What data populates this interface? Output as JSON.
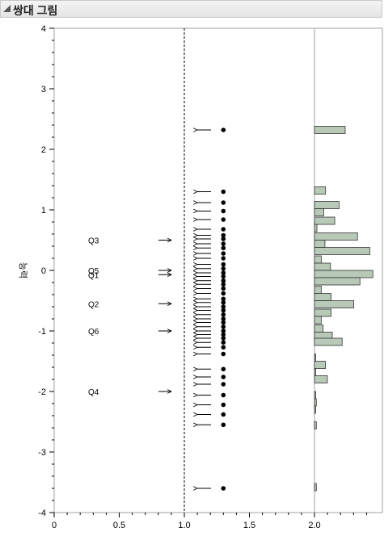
{
  "header": {
    "title": "쌍대 그림"
  },
  "chart_data": {
    "type": "scatter",
    "title": "",
    "xlabel": "",
    "ylabel": "능력",
    "xlim": [
      0,
      2.5
    ],
    "ylim": [
      -4,
      4
    ],
    "x_ticks": [
      0,
      0.5,
      1,
      1.5,
      2
    ],
    "x_tick_labels": [
      "0",
      "0.5",
      "1.0",
      "1.5",
      "2.0"
    ],
    "y_ticks": [
      -4,
      -3,
      -2,
      -1,
      0,
      1,
      2,
      3,
      4
    ],
    "y_tick_labels": [
      "-4",
      "-3",
      "-2",
      "-1",
      "0",
      "1",
      "2",
      "3",
      "4"
    ],
    "reference_line_x": 1.0,
    "histogram_baseline_x": 2.0,
    "points_x": 1.3,
    "point_y": [
      2.32,
      1.3,
      1.12,
      0.98,
      0.84,
      0.68,
      0.58,
      0.52,
      0.44,
      0.37,
      0.28,
      0.2,
      0.1,
      0.03,
      -0.04,
      -0.1,
      -0.17,
      -0.23,
      -0.3,
      -0.38,
      -0.47,
      -0.53,
      -0.6,
      -0.66,
      -0.73,
      -0.8,
      -0.86,
      -0.93,
      -1.0,
      -1.06,
      -1.12,
      -1.19,
      -1.27,
      -1.38,
      -1.63,
      -1.76,
      -1.88,
      -2.06,
      -2.22,
      -2.38,
      -2.55,
      -3.6
    ],
    "items": [
      {
        "label": "Q3",
        "y": 0.5
      },
      {
        "label": "Q5",
        "y": 0.0
      },
      {
        "label": "Q1",
        "y": -0.07
      },
      {
        "label": "Q2",
        "y": -0.55
      },
      {
        "label": "Q6",
        "y": -1.0
      },
      {
        "label": "Q4",
        "y": -2.0
      }
    ],
    "histogram": [
      {
        "y": 2.32,
        "count": 5
      },
      {
        "y": 1.32,
        "count": 1.8
      },
      {
        "y": 1.08,
        "count": 4
      },
      {
        "y": 0.96,
        "count": 1.5
      },
      {
        "y": 0.82,
        "count": 3.3
      },
      {
        "y": 0.7,
        "count": 0.4
      },
      {
        "y": 0.56,
        "count": 7
      },
      {
        "y": 0.44,
        "count": 1.7
      },
      {
        "y": 0.32,
        "count": 9
      },
      {
        "y": 0.18,
        "count": 1.1
      },
      {
        "y": 0.06,
        "count": 2.6
      },
      {
        "y": -0.06,
        "count": 9.5
      },
      {
        "y": -0.18,
        "count": 7.4
      },
      {
        "y": -0.32,
        "count": 1.1
      },
      {
        "y": -0.44,
        "count": 2.7
      },
      {
        "y": -0.56,
        "count": 6.4
      },
      {
        "y": -0.7,
        "count": 2.7
      },
      {
        "y": -0.82,
        "count": 1.1
      },
      {
        "y": -0.96,
        "count": 1.4
      },
      {
        "y": -1.08,
        "count": 2.9
      },
      {
        "y": -1.18,
        "count": 4.5
      },
      {
        "y": -1.44,
        "count": 0.2
      },
      {
        "y": -1.56,
        "count": 1.8
      },
      {
        "y": -1.68,
        "count": 0.2
      },
      {
        "y": -1.8,
        "count": 2.1
      },
      {
        "y": -2.06,
        "count": 0.2
      },
      {
        "y": -2.18,
        "count": 0.3
      },
      {
        "y": -2.3,
        "count": 0.2
      },
      {
        "y": -2.56,
        "count": 0.3
      },
      {
        "y": -3.58,
        "count": 0.3
      }
    ],
    "legend": "none"
  }
}
